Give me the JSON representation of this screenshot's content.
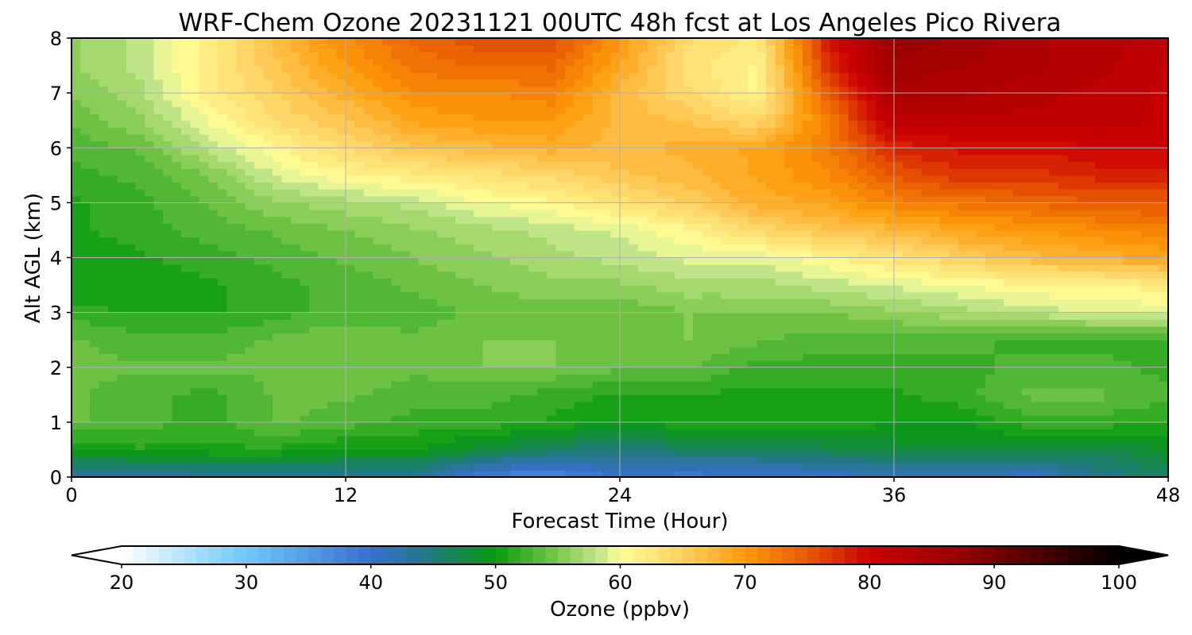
{
  "chart_data": {
    "type": "heatmap",
    "title": "WRF-Chem Ozone  20231121 00UTC 48h fcst at Los Angeles Pico Rivera",
    "xlabel": "Forecast Time (Hour)",
    "ylabel": "Alt AGL (km)",
    "xlim": [
      0,
      48
    ],
    "ylim": [
      0,
      8
    ],
    "xticks": [
      0,
      12,
      24,
      36,
      48
    ],
    "yticks": [
      0,
      1,
      2,
      3,
      4,
      5,
      6,
      7,
      8
    ],
    "grid": true,
    "colorbar": {
      "label": "Ozone  (ppbv)",
      "min": 20,
      "max": 100,
      "ticks": [
        20,
        30,
        40,
        50,
        60,
        70,
        80,
        90,
        100
      ],
      "extend": "both",
      "stops": [
        {
          "value": 20,
          "color": "#ffffff"
        },
        {
          "value": 30,
          "color": "#6ec8f6"
        },
        {
          "value": 40,
          "color": "#3a6fcf"
        },
        {
          "value": 45,
          "color": "#1f7a7a"
        },
        {
          "value": 50,
          "color": "#0a9a10"
        },
        {
          "value": 55,
          "color": "#7cc84a"
        },
        {
          "value": 58.5,
          "color": "#c8e890"
        },
        {
          "value": 60,
          "color": "#ffff99"
        },
        {
          "value": 65,
          "color": "#ffd060"
        },
        {
          "value": 70,
          "color": "#ff9a0a"
        },
        {
          "value": 75,
          "color": "#e85a00"
        },
        {
          "value": 80,
          "color": "#cc0000"
        },
        {
          "value": 87,
          "color": "#990000"
        },
        {
          "value": 100,
          "color": "#000000"
        }
      ]
    },
    "x": [
      0,
      3,
      6,
      9,
      12,
      15,
      18,
      21,
      24,
      27,
      30,
      33,
      36,
      39,
      42,
      45,
      48
    ],
    "y": [
      0,
      0.5,
      1,
      1.5,
      2,
      2.5,
      3,
      3.5,
      4,
      4.5,
      5,
      5.5,
      6,
      6.5,
      7,
      7.5,
      8
    ],
    "z": [
      [
        42,
        42,
        43,
        43,
        43,
        43,
        38,
        37,
        40,
        39,
        40,
        40,
        41,
        41,
        40,
        44,
        46
      ],
      [
        50,
        51,
        51,
        51,
        50,
        50,
        48,
        46,
        45,
        46,
        46,
        47,
        48,
        48,
        48,
        47,
        49
      ],
      [
        54,
        53,
        52,
        54,
        53,
        52,
        52,
        51,
        50,
        51,
        51,
        51,
        50,
        50,
        52,
        52,
        51
      ],
      [
        54,
        53,
        52,
        54,
        54,
        53,
        53,
        52,
        51,
        51,
        51,
        51,
        51,
        52,
        54,
        54,
        53
      ],
      [
        54,
        54,
        54,
        54,
        55,
        54,
        55,
        55,
        54,
        54,
        52,
        52,
        52,
        52,
        53,
        53,
        52
      ],
      [
        54,
        53,
        53,
        54,
        55,
        54,
        55,
        55,
        55,
        55,
        54,
        53,
        53,
        53,
        52,
        52,
        52
      ],
      [
        52,
        51,
        51,
        52,
        53,
        53,
        54,
        54,
        54,
        55,
        55,
        55,
        56,
        57,
        58,
        59,
        59
      ],
      [
        50,
        50,
        51,
        52,
        53,
        54,
        55,
        56,
        56,
        57,
        57,
        58,
        59,
        60,
        61,
        61,
        62
      ],
      [
        50,
        51,
        52,
        53,
        54,
        55,
        56,
        57,
        58,
        59,
        59,
        61,
        63,
        65,
        67,
        68,
        69
      ],
      [
        51,
        52,
        53,
        54,
        55,
        56,
        57,
        58,
        59,
        61,
        64,
        66,
        67,
        69,
        70,
        71,
        72
      ],
      [
        51,
        52,
        54,
        56,
        57,
        58,
        60,
        61,
        63,
        65,
        68,
        69,
        72,
        73,
        74,
        75,
        75
      ],
      [
        52,
        53,
        55,
        59,
        61,
        62,
        63,
        64,
        66,
        67,
        69,
        71,
        75,
        77,
        77,
        78,
        78
      ],
      [
        53,
        54,
        58,
        61,
        64,
        66,
        67,
        68,
        67,
        68,
        69,
        72,
        78,
        79,
        79,
        80,
        80
      ],
      [
        54,
        56,
        60,
        64,
        66,
        69,
        70,
        70,
        67,
        66,
        64,
        72,
        82,
        82,
        82,
        82,
        81
      ],
      [
        55,
        57,
        62,
        65,
        68,
        71,
        71,
        72,
        67,
        64,
        61,
        74,
        84,
        84,
        83,
        82,
        81
      ],
      [
        56,
        58,
        62,
        66,
        70,
        73,
        74,
        74,
        69,
        63,
        61,
        77,
        86,
        85,
        84,
        83,
        81
      ],
      [
        56,
        58,
        62,
        67,
        71,
        74,
        76,
        76,
        70,
        64,
        62,
        78,
        87,
        86,
        84,
        83,
        82
      ]
    ]
  }
}
